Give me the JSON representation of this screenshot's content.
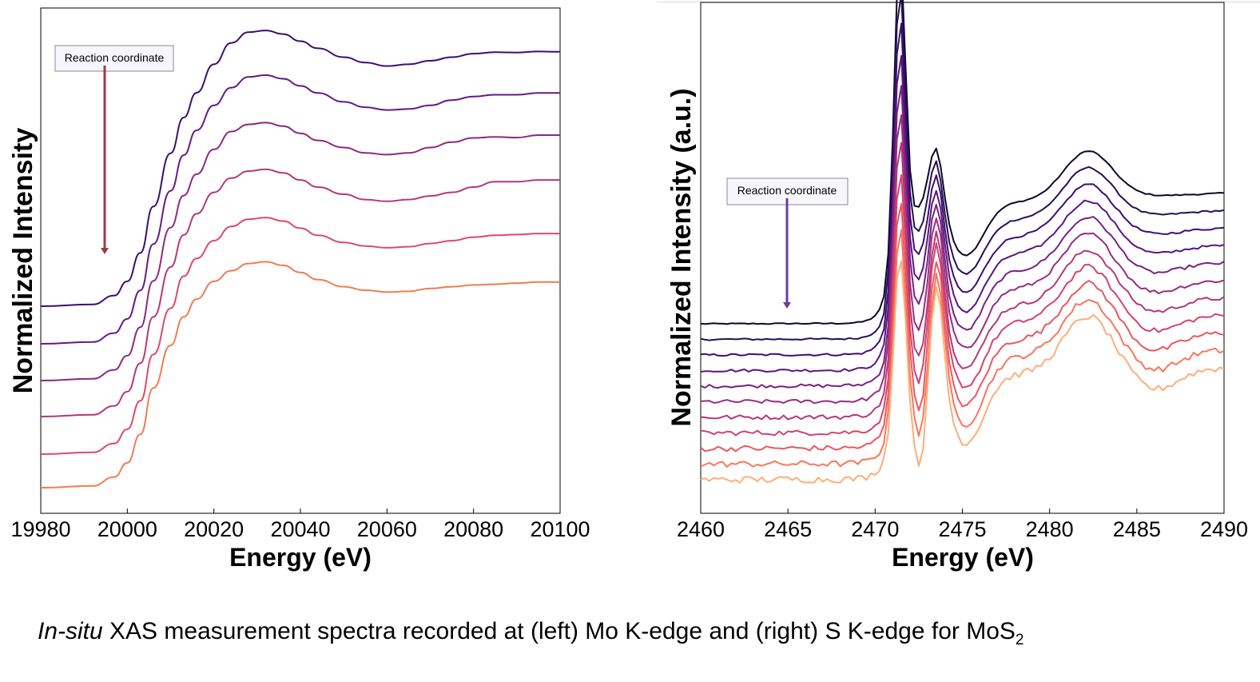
{
  "caption": {
    "italic": "In-situ",
    "text": " XAS measurement spectra recorded at (left) Mo K-edge and (right) S K-edge for MoS",
    "subscript": "2"
  },
  "chart_data": [
    {
      "type": "line",
      "title": "",
      "xlabel": "Energy (eV)",
      "ylabel": "Normalized Intensity",
      "xlim": [
        19980,
        20100
      ],
      "xticks": [
        "19980",
        "20000",
        "20020",
        "20040",
        "20060",
        "20080",
        "20100"
      ],
      "yticks": false,
      "annotation": {
        "text": "Reaction coordinate",
        "arrow": "down",
        "arrow_color": "#9e3a48"
      },
      "series": [
        {
          "color": "#3b0f70",
          "offset": 0.0,
          "points": [
            [
              19980,
              0.0
            ],
            [
              19992,
              0.005
            ],
            [
              19997,
              0.03
            ],
            [
              20000,
              0.07
            ],
            [
              20003,
              0.15
            ],
            [
              20006,
              0.28
            ],
            [
              20010,
              0.43
            ],
            [
              20013,
              0.53
            ],
            [
              20016,
              0.6
            ],
            [
              20020,
              0.68
            ],
            [
              20024,
              0.74
            ],
            [
              20028,
              0.77
            ],
            [
              20032,
              0.775
            ],
            [
              20036,
              0.765
            ],
            [
              20040,
              0.745
            ],
            [
              20044,
              0.725
            ],
            [
              20050,
              0.7
            ],
            [
              20055,
              0.685
            ],
            [
              20060,
              0.675
            ],
            [
              20065,
              0.68
            ],
            [
              20070,
              0.69
            ],
            [
              20075,
              0.7
            ],
            [
              20080,
              0.71
            ],
            [
              20085,
              0.714
            ],
            [
              20090,
              0.713
            ],
            [
              20095,
              0.716
            ],
            [
              20100,
              0.715
            ]
          ]
        },
        {
          "color": "#641a80",
          "offset": 0.0,
          "points": [
            [
              19980,
              0.0
            ],
            [
              19992,
              0.005
            ],
            [
              19997,
              0.03
            ],
            [
              20000,
              0.07
            ],
            [
              20003,
              0.15
            ],
            [
              20006,
              0.28
            ],
            [
              20010,
              0.43
            ],
            [
              20013,
              0.53
            ],
            [
              20016,
              0.6
            ],
            [
              20020,
              0.67
            ],
            [
              20024,
              0.72
            ],
            [
              20028,
              0.75
            ],
            [
              20032,
              0.755
            ],
            [
              20036,
              0.745
            ],
            [
              20040,
              0.725
            ],
            [
              20044,
              0.705
            ],
            [
              20050,
              0.68
            ],
            [
              20055,
              0.665
            ],
            [
              20060,
              0.657
            ],
            [
              20065,
              0.66
            ],
            [
              20070,
              0.67
            ],
            [
              20075,
              0.685
            ],
            [
              20080,
              0.695
            ],
            [
              20085,
              0.7
            ],
            [
              20090,
              0.7
            ],
            [
              20095,
              0.705
            ],
            [
              20100,
              0.705
            ]
          ]
        },
        {
          "color": "#8c2981",
          "offset": 0.0,
          "points": [
            [
              19980,
              0.0
            ],
            [
              19992,
              0.005
            ],
            [
              19997,
              0.03
            ],
            [
              20000,
              0.07
            ],
            [
              20003,
              0.15
            ],
            [
              20006,
              0.28
            ],
            [
              20010,
              0.43
            ],
            [
              20013,
              0.52
            ],
            [
              20016,
              0.58
            ],
            [
              20020,
              0.65
            ],
            [
              20024,
              0.7
            ],
            [
              20028,
              0.72
            ],
            [
              20032,
              0.725
            ],
            [
              20036,
              0.715
            ],
            [
              20040,
              0.695
            ],
            [
              20044,
              0.675
            ],
            [
              20050,
              0.655
            ],
            [
              20055,
              0.64
            ],
            [
              20060,
              0.635
            ],
            [
              20065,
              0.64
            ],
            [
              20070,
              0.655
            ],
            [
              20075,
              0.67
            ],
            [
              20080,
              0.682
            ],
            [
              20085,
              0.685
            ],
            [
              20090,
              0.683
            ],
            [
              20095,
              0.69
            ],
            [
              20100,
              0.69
            ]
          ]
        },
        {
          "color": "#b73779",
          "offset": 0.0,
          "points": [
            [
              19980,
              0.0
            ],
            [
              19992,
              0.005
            ],
            [
              19997,
              0.03
            ],
            [
              20000,
              0.07
            ],
            [
              20003,
              0.15
            ],
            [
              20006,
              0.28
            ],
            [
              20010,
              0.42
            ],
            [
              20013,
              0.51
            ],
            [
              20016,
              0.57
            ],
            [
              20020,
              0.63
            ],
            [
              20024,
              0.67
            ],
            [
              20028,
              0.69
            ],
            [
              20032,
              0.695
            ],
            [
              20036,
              0.685
            ],
            [
              20040,
              0.665
            ],
            [
              20044,
              0.645
            ],
            [
              20050,
              0.625
            ],
            [
              20055,
              0.61
            ],
            [
              20060,
              0.605
            ],
            [
              20065,
              0.61
            ],
            [
              20070,
              0.62
            ],
            [
              20075,
              0.63
            ],
            [
              20080,
              0.645
            ],
            [
              20085,
              0.66
            ],
            [
              20090,
              0.66
            ],
            [
              20095,
              0.665
            ],
            [
              20100,
              0.665
            ]
          ]
        },
        {
          "color": "#de4968",
          "offset": 0.0,
          "points": [
            [
              19980,
              0.0
            ],
            [
              19992,
              0.005
            ],
            [
              19997,
              0.03
            ],
            [
              20000,
              0.07
            ],
            [
              20003,
              0.15
            ],
            [
              20006,
              0.28
            ],
            [
              20010,
              0.41
            ],
            [
              20013,
              0.5
            ],
            [
              20016,
              0.55
            ],
            [
              20020,
              0.6
            ],
            [
              20024,
              0.64
            ],
            [
              20028,
              0.66
            ],
            [
              20032,
              0.665
            ],
            [
              20036,
              0.655
            ],
            [
              20040,
              0.635
            ],
            [
              20044,
              0.615
            ],
            [
              20050,
              0.595
            ],
            [
              20055,
              0.585
            ],
            [
              20060,
              0.58
            ],
            [
              20065,
              0.583
            ],
            [
              20070,
              0.592
            ],
            [
              20075,
              0.6
            ],
            [
              20080,
              0.61
            ],
            [
              20085,
              0.615
            ],
            [
              20090,
              0.617
            ],
            [
              20095,
              0.62
            ],
            [
              20100,
              0.62
            ]
          ]
        },
        {
          "color": "#f07c55",
          "offset": 0.0,
          "points": [
            [
              19980,
              0.0
            ],
            [
              19992,
              0.005
            ],
            [
              19997,
              0.03
            ],
            [
              20000,
              0.07
            ],
            [
              20003,
              0.15
            ],
            [
              20006,
              0.28
            ],
            [
              20010,
              0.4
            ],
            [
              20013,
              0.48
            ],
            [
              20016,
              0.53
            ],
            [
              20020,
              0.58
            ],
            [
              20024,
              0.61
            ],
            [
              20028,
              0.63
            ],
            [
              20032,
              0.635
            ],
            [
              20036,
              0.625
            ],
            [
              20040,
              0.605
            ],
            [
              20044,
              0.585
            ],
            [
              20050,
              0.565
            ],
            [
              20055,
              0.555
            ],
            [
              20060,
              0.55
            ],
            [
              20065,
              0.552
            ],
            [
              20070,
              0.56
            ],
            [
              20075,
              0.565
            ],
            [
              20080,
              0.57
            ],
            [
              20085,
              0.572
            ],
            [
              20090,
              0.575
            ],
            [
              20095,
              0.578
            ],
            [
              20100,
              0.578
            ]
          ]
        }
      ]
    },
    {
      "type": "line",
      "title": "",
      "xlabel": "Energy (eV)",
      "ylabel": "Normalized Intensity (a.u.)",
      "xlim": [
        2460,
        2490
      ],
      "xticks": [
        "2460",
        "2465",
        "2470",
        "2475",
        "2480",
        "2485",
        "2490"
      ],
      "yticks": false,
      "annotation": {
        "text": "Reaction coordinate",
        "arrow": "down",
        "arrow_color": "#6a3d9a"
      },
      "series": [
        {
          "color": "#0d0829"
        },
        {
          "color": "#251255"
        },
        {
          "color": "#3d0f71"
        },
        {
          "color": "#5c167f"
        },
        {
          "color": "#7a2181"
        },
        {
          "color": "#982d80"
        },
        {
          "color": "#b73779"
        },
        {
          "color": "#d3436e"
        },
        {
          "color": "#eb5760"
        },
        {
          "color": "#f8765c"
        },
        {
          "color": "#fdae78"
        }
      ]
    }
  ]
}
